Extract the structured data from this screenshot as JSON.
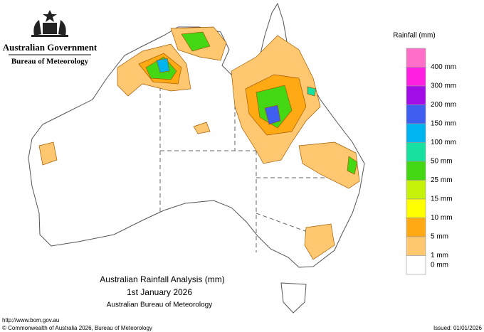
{
  "header": {
    "government": "Australian Government",
    "agency": "Bureau of Meteorology"
  },
  "legend": {
    "title": "Rainfall (mm)",
    "items": [
      {
        "label": "400 mm",
        "color": "#ff6fc8"
      },
      {
        "label": "300 mm",
        "color": "#ff1fe0"
      },
      {
        "label": "200 mm",
        "color": "#a20ce6"
      },
      {
        "label": "150 mm",
        "color": "#3e5ff0"
      },
      {
        "label": "100 mm",
        "color": "#00b4f0"
      },
      {
        "label": "50 mm",
        "color": "#17e0a0"
      },
      {
        "label": "25 mm",
        "color": "#44d814"
      },
      {
        "label": "15 mm",
        "color": "#c6f20a"
      },
      {
        "label": "10 mm",
        "color": "#ffff00"
      },
      {
        "label": "5 mm",
        "color": "#ffaa14"
      },
      {
        "label": "1 mm",
        "color": "#ffc870"
      },
      {
        "label": "0 mm",
        "color": "#ffffff"
      }
    ]
  },
  "title": {
    "line1": "Australian Rainfall Analysis (mm)",
    "line2": "1st January 2026",
    "line3": "Australian Bureau of Meteorology"
  },
  "footer": {
    "url": "http://www.bom.gov.au",
    "copyright": "© Commonwealth of Australia 2026, Bureau of Meteorology",
    "issued": "Issued: 01/01/2026"
  }
}
